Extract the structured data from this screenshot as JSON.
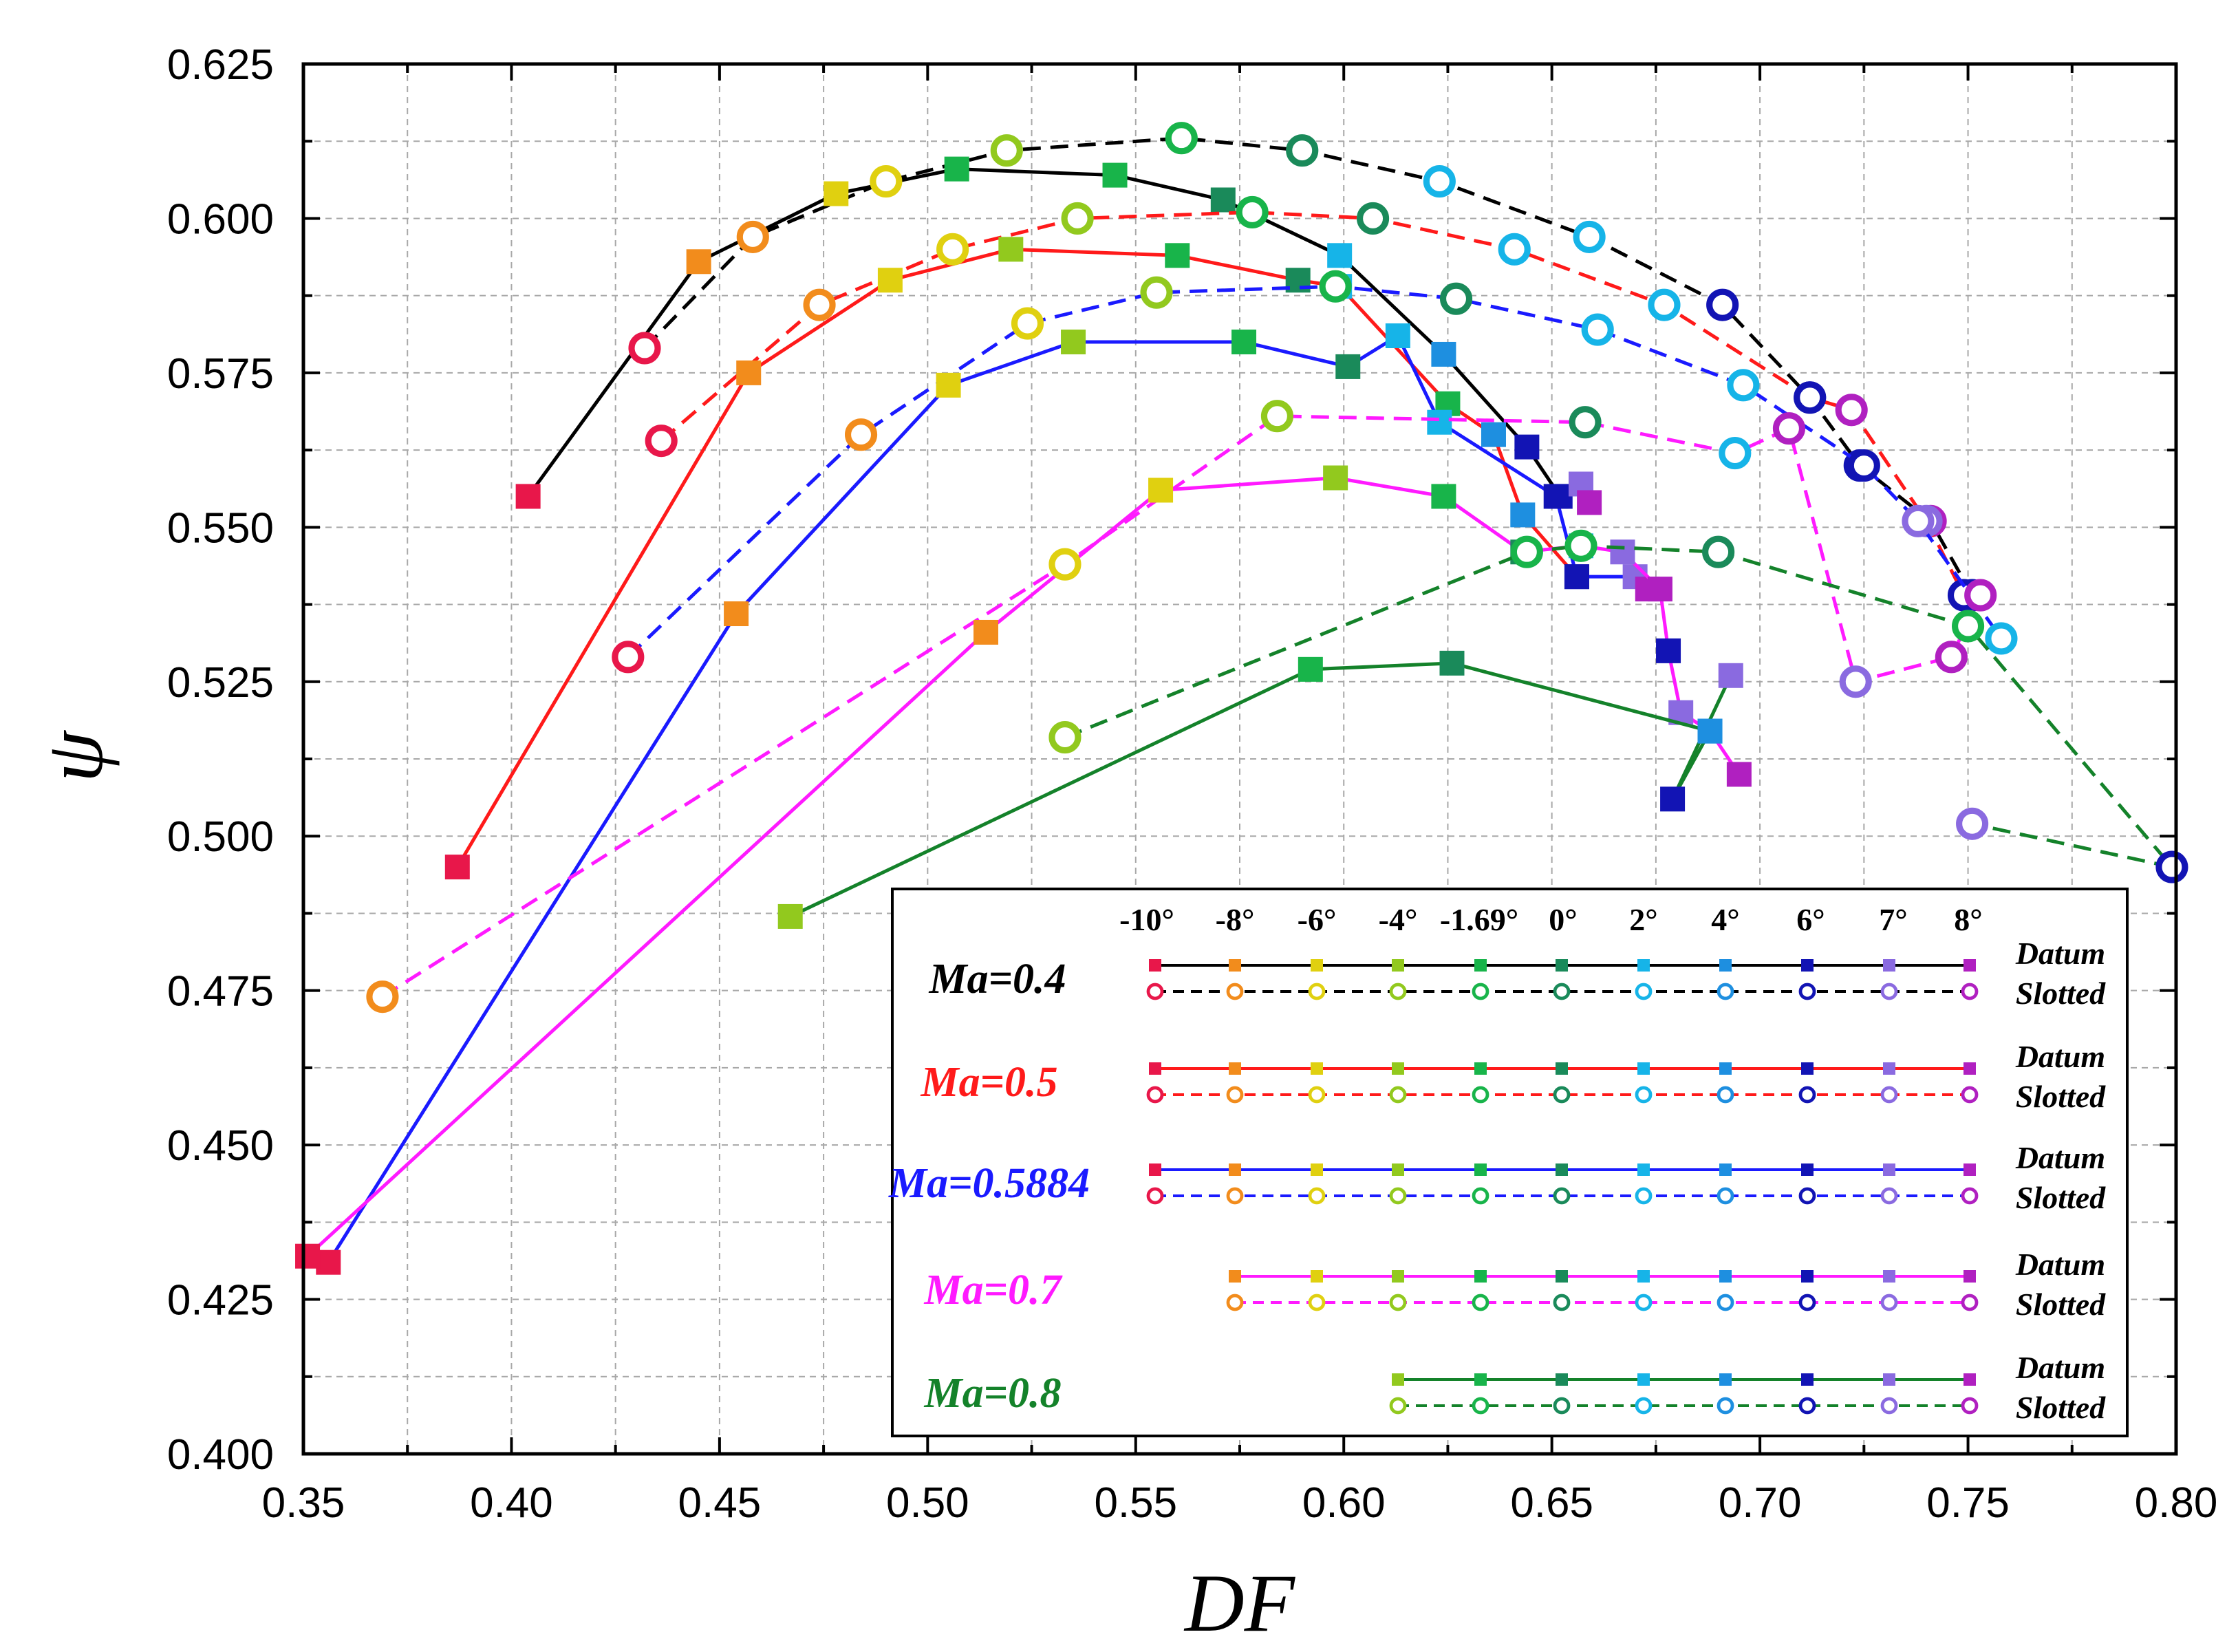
{
  "chart_data": {
    "type": "line",
    "title": "",
    "xlabel": "DF",
    "ylabel": "ψ",
    "xlim": [
      0.35,
      0.8
    ],
    "ylim": [
      0.4,
      0.625
    ],
    "grid": true,
    "x_ticks": [
      "0.35",
      "0.40",
      "0.45",
      "0.50",
      "0.55",
      "0.60",
      "0.65",
      "0.70",
      "0.75",
      "0.80"
    ],
    "y_ticks": [
      "0.400",
      "0.425",
      "0.450",
      "0.475",
      "0.500",
      "0.525",
      "0.550",
      "0.575",
      "0.600",
      "0.625"
    ],
    "angles": [
      "-10°",
      "-8°",
      "-6°",
      "-4°",
      "-1.69°",
      "0°",
      "2°",
      "4°",
      "6°",
      "7°",
      "8°"
    ],
    "angle_colors": [
      "#e8174a",
      "#f28c1c",
      "#e0d010",
      "#92c91e",
      "#18b44a",
      "#1a8a5a",
      "#16b4e8",
      "#1e8fe0",
      "#1214b4",
      "#8a6ae0",
      "#b020c0"
    ],
    "legend": {
      "datum_label": "Datum",
      "slotted_label": "Slotted",
      "placement": "bottom-right"
    },
    "series": [
      {
        "name": "Ma=0.4",
        "line_color": "#000000",
        "start_index": 0,
        "datum": [
          [
            0.404,
            0.555
          ],
          [
            0.445,
            0.593
          ],
          [
            0.478,
            0.604
          ],
          [
            0.507,
            0.608
          ],
          [
            0.545,
            0.607
          ],
          [
            0.571,
            0.603
          ],
          [
            0.599,
            0.594
          ],
          [
            0.624,
            0.578
          ],
          [
            0.644,
            0.563
          ],
          [
            0.652,
            0.555
          ],
          [
            0.657,
            0.557
          ],
          [
            0.659,
            0.554
          ]
        ],
        "datum_colors": [
          "#e8174a",
          "#f28c1c",
          "#e0d010",
          "#18b44a",
          "#18b44a",
          "#1a8a5a",
          "#16b4e8",
          "#1e8fe0",
          "#1214b4",
          "#1214b4",
          "#8a6ae0",
          "#b020c0"
        ],
        "slotted": [
          [
            0.432,
            0.579
          ],
          [
            0.458,
            0.597
          ],
          [
            0.49,
            0.606
          ],
          [
            0.519,
            0.611
          ],
          [
            0.561,
            0.613
          ],
          [
            0.59,
            0.611
          ],
          [
            0.623,
            0.606
          ],
          [
            0.659,
            0.597
          ],
          [
            0.691,
            0.586
          ],
          [
            0.712,
            0.571
          ],
          [
            0.724,
            0.56
          ],
          [
            0.741,
            0.551
          ],
          [
            0.751,
            0.539
          ]
        ],
        "slotted_colors": [
          "#e8174a",
          "#f28c1c",
          "#e0d010",
          "#92c91e",
          "#18b44a",
          "#1a8a5a",
          "#16b4e8",
          "#16b4e8",
          "#1214b4",
          "#1214b4",
          "#1214b4",
          "#b020c0",
          "#1214b4"
        ]
      },
      {
        "name": "Ma=0.5",
        "line_color": "#ff1a1a",
        "start_index": 0,
        "datum": [
          [
            0.387,
            0.495
          ],
          [
            0.457,
            0.575
          ],
          [
            0.491,
            0.59
          ],
          [
            0.52,
            0.595
          ],
          [
            0.56,
            0.594
          ],
          [
            0.589,
            0.59
          ],
          [
            0.599,
            0.589
          ],
          [
            0.625,
            0.57
          ],
          [
            0.636,
            0.565
          ],
          [
            0.643,
            0.552
          ],
          [
            0.656,
            0.542
          ]
        ],
        "datum_colors": [
          "#e8174a",
          "#f28c1c",
          "#e0d010",
          "#92c91e",
          "#18b44a",
          "#1a8a5a",
          "#16b4e8",
          "#18b44a",
          "#1e8fe0",
          "#1e8fe0",
          "#1214b4"
        ],
        "slotted": [
          [
            0.436,
            0.564
          ],
          [
            0.474,
            0.586
          ],
          [
            0.506,
            0.595
          ],
          [
            0.536,
            0.6
          ],
          [
            0.578,
            0.601
          ],
          [
            0.607,
            0.6
          ],
          [
            0.641,
            0.595
          ],
          [
            0.677,
            0.586
          ],
          [
            0.712,
            0.571
          ],
          [
            0.722,
            0.569
          ],
          [
            0.74,
            0.551
          ],
          [
            0.749,
            0.539
          ]
        ],
        "slotted_colors": [
          "#e8174a",
          "#f28c1c",
          "#e0d010",
          "#92c91e",
          "#18b44a",
          "#1a8a5a",
          "#16b4e8",
          "#16b4e8",
          "#1214b4",
          "#b020c0",
          "#8a6ae0",
          "#1214b4"
        ]
      },
      {
        "name": "Ma=0.5884",
        "line_color": "#1a1aff",
        "start_index": 0,
        "datum": [
          [
            0.356,
            0.431
          ],
          [
            0.454,
            0.536
          ],
          [
            0.505,
            0.573
          ],
          [
            0.535,
            0.58
          ],
          [
            0.576,
            0.58
          ],
          [
            0.601,
            0.576
          ],
          [
            0.613,
            0.581
          ],
          [
            0.623,
            0.567
          ],
          [
            0.651,
            0.555
          ],
          [
            0.656,
            0.542
          ],
          [
            0.67,
            0.542
          ],
          [
            0.673,
            0.54
          ]
        ],
        "datum_colors": [
          "#e8174a",
          "#f28c1c",
          "#e0d010",
          "#92c91e",
          "#18b44a",
          "#1a8a5a",
          "#16b4e8",
          "#16b4e8",
          "#1214b4",
          "#1214b4",
          "#8a6ae0",
          "#b020c0"
        ],
        "slotted": [
          [
            0.428,
            0.529
          ],
          [
            0.484,
            0.565
          ],
          [
            0.524,
            0.583
          ],
          [
            0.555,
            0.588
          ],
          [
            0.598,
            0.589
          ],
          [
            0.627,
            0.587
          ],
          [
            0.661,
            0.582
          ],
          [
            0.696,
            0.573
          ],
          [
            0.725,
            0.56
          ],
          [
            0.738,
            0.551
          ],
          [
            0.758,
            0.532
          ]
        ],
        "slotted_colors": [
          "#e8174a",
          "#f28c1c",
          "#e0d010",
          "#92c91e",
          "#18b44a",
          "#1a8a5a",
          "#16b4e8",
          "#16b4e8",
          "#1214b4",
          "#8a6ae0",
          "#16b4e8"
        ]
      },
      {
        "name": "Ma=0.7",
        "line_color": "#ff1aff",
        "start_index": 1,
        "datum": [
          [
            0.351,
            0.432
          ],
          [
            0.514,
            0.533
          ],
          [
            0.556,
            0.556
          ],
          [
            0.598,
            0.558
          ],
          [
            0.624,
            0.555
          ],
          [
            0.643,
            0.546
          ],
          [
            0.657,
            0.547
          ],
          [
            0.667,
            0.546
          ],
          [
            0.676,
            0.54
          ],
          [
            0.678,
            0.53
          ],
          [
            0.681,
            0.52
          ],
          [
            0.688,
            0.517
          ],
          [
            0.695,
            0.51
          ]
        ],
        "datum_colors": [
          "#e8174a",
          "#f28c1c",
          "#e0d010",
          "#92c91e",
          "#18b44a",
          "#1a8a5a",
          "#16b4e8",
          "#8a6ae0",
          "#b020c0",
          "#1214b4",
          "#8a6ae0",
          "#1e8fe0",
          "#b020c0"
        ],
        "slotted": [
          [
            0.369,
            0.474
          ],
          [
            0.533,
            0.544
          ],
          [
            0.584,
            0.568
          ],
          [
            0.658,
            0.567
          ],
          [
            0.694,
            0.562
          ],
          [
            0.707,
            0.566
          ],
          [
            0.723,
            0.525
          ],
          [
            0.746,
            0.529
          ],
          [
            0.753,
            0.539
          ]
        ],
        "slotted_colors": [
          "#f28c1c",
          "#e0d010",
          "#92c91e",
          "#1a8a5a",
          "#16b4e8",
          "#b020c0",
          "#8a6ae0",
          "#b020c0",
          "#b020c0"
        ]
      },
      {
        "name": "Ma=0.8",
        "line_color": "#14822a",
        "start_index": 3,
        "datum": [
          [
            0.467,
            0.487
          ],
          [
            0.592,
            0.527
          ],
          [
            0.626,
            0.528
          ],
          [
            0.688,
            0.517
          ],
          [
            0.679,
            0.506
          ],
          [
            0.693,
            0.526
          ]
        ],
        "datum_colors": [
          "#92c91e",
          "#18b44a",
          "#1a8a5a",
          "#1e8fe0",
          "#1214b4",
          "#8a6ae0"
        ],
        "slotted": [
          [
            0.533,
            0.516
          ],
          [
            0.644,
            0.546
          ],
          [
            0.657,
            0.547
          ],
          [
            0.69,
            0.546
          ],
          [
            0.75,
            0.534
          ],
          [
            0.799,
            0.495
          ],
          [
            0.751,
            0.502
          ]
        ],
        "slotted_colors": [
          "#92c91e",
          "#18b44a",
          "#18b44a",
          "#1a8a5a",
          "#18b44a",
          "#1214b4",
          "#8a6ae0"
        ]
      }
    ]
  }
}
